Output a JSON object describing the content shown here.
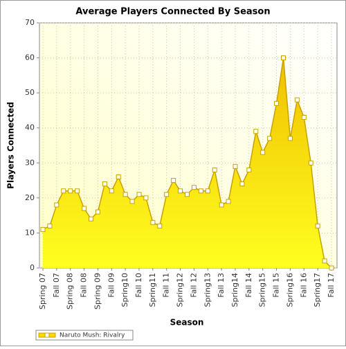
{
  "chart_data": {
    "type": "area",
    "title": "Average Players Connected By Season",
    "xlabel": "Season",
    "ylabel": "Players Connected",
    "categories": [
      "Spring 07",
      null,
      "Fall 07",
      null,
      "Spring 08",
      null,
      "Fall 08",
      null,
      "Spring 09",
      null,
      "Fall 09",
      null,
      "Spring10",
      null,
      "Fall 10",
      null,
      "Spring11",
      null,
      "Fall 11",
      null,
      "Spring12",
      null,
      "Fall 12",
      null,
      "Spring13",
      null,
      "Fall 13",
      null,
      "Spring14",
      null,
      "Fall 14",
      null,
      "Spring15",
      null,
      "Fall 15",
      null,
      "Spring16",
      null,
      "Fall 16",
      null,
      "Spring17",
      null,
      "Fall 17"
    ],
    "series": [
      {
        "name": "Naruto Mush: Rivalry",
        "color": "#ffd700",
        "line_color": "#c9a000",
        "values": [
          11,
          12,
          18,
          22,
          22,
          22,
          17,
          14,
          16,
          24,
          22,
          26,
          21,
          19,
          21,
          20,
          13,
          12,
          21,
          25,
          22,
          21,
          23,
          22,
          22,
          28,
          18,
          19,
          29,
          24,
          28,
          39,
          33,
          37,
          47,
          60,
          37,
          48,
          43,
          30,
          12,
          2,
          0
        ]
      }
    ],
    "ylim": [
      0,
      70
    ],
    "yticks": [
      0,
      10,
      20,
      30,
      40,
      50,
      60,
      70
    ],
    "grid": true
  }
}
